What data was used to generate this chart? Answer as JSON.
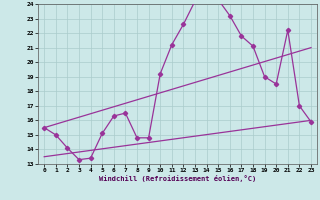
{
  "xlabel": "Windchill (Refroidissement éolien,°C)",
  "background_color": "#cce8e8",
  "grid_color": "#aacccc",
  "line_color": "#993399",
  "xlim": [
    -0.5,
    23.5
  ],
  "ylim": [
    13,
    24
  ],
  "yticks": [
    13,
    14,
    15,
    16,
    17,
    18,
    19,
    20,
    21,
    22,
    23,
    24
  ],
  "xticks": [
    0,
    1,
    2,
    3,
    4,
    5,
    6,
    7,
    8,
    9,
    10,
    11,
    12,
    13,
    14,
    15,
    16,
    17,
    18,
    19,
    20,
    21,
    22,
    23
  ],
  "line1_x": [
    0,
    1,
    2,
    3,
    4,
    5,
    6,
    7,
    8,
    9,
    10,
    11,
    12,
    13,
    14,
    15,
    16,
    17,
    18,
    19,
    20,
    21,
    22,
    23
  ],
  "line1_y": [
    15.5,
    15.0,
    14.1,
    13.3,
    13.4,
    15.1,
    16.3,
    16.5,
    14.8,
    14.8,
    19.2,
    21.2,
    22.6,
    24.2,
    24.3,
    24.3,
    23.2,
    21.8,
    21.1,
    19.0,
    18.5,
    22.2,
    17.0,
    15.9
  ],
  "line2_x": [
    0,
    23
  ],
  "line2_y": [
    15.5,
    21.0
  ],
  "line3_x": [
    0,
    23
  ],
  "line3_y": [
    13.5,
    16.0
  ]
}
